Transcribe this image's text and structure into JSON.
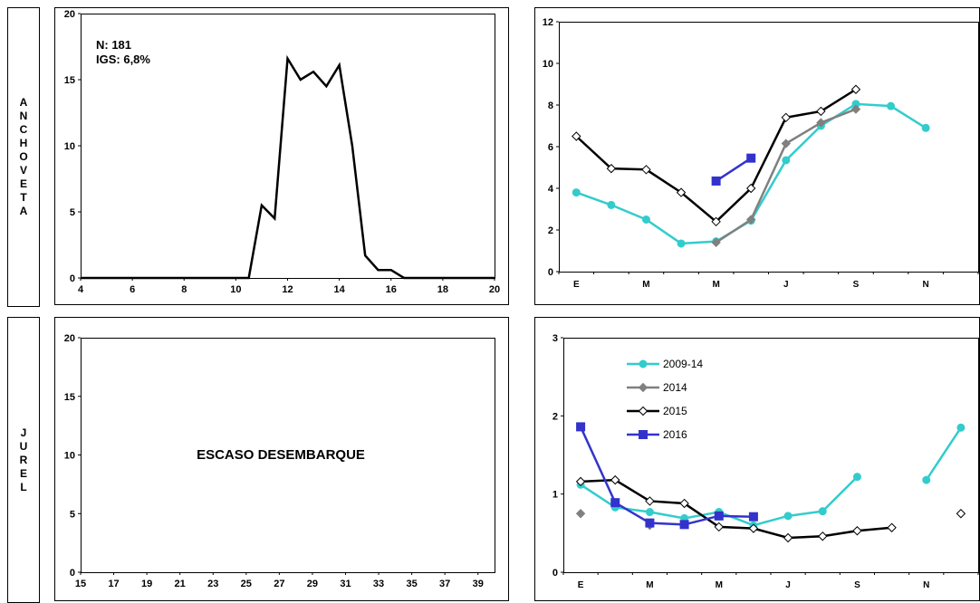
{
  "rows": [
    {
      "label": "ANCHOVETA"
    },
    {
      "label": "JUREL"
    }
  ],
  "chart_data": [
    {
      "type": "line",
      "id": "anch-length",
      "xlim": [
        4,
        20
      ],
      "ylim": [
        0,
        20
      ],
      "xticks": [
        "4",
        "6",
        "8",
        "10",
        "12",
        "14",
        "16",
        "18",
        "20"
      ],
      "yticks": [
        "0",
        "5",
        "10",
        "15",
        "20"
      ],
      "grid": false,
      "annotations": [
        "N: 181",
        "IGS: 6,8%"
      ],
      "series": [
        {
          "color": "#000000",
          "x": [
            4,
            10.5,
            11,
            11.5,
            12,
            12.5,
            13,
            13.5,
            14,
            14.5,
            15,
            15.5,
            16,
            16.5,
            17,
            20
          ],
          "y": [
            0,
            0,
            5.5,
            4.5,
            16.6,
            15,
            15.6,
            14.5,
            16.1,
            10,
            1.7,
            0.6,
            0.6,
            0,
            0,
            0
          ]
        }
      ]
    },
    {
      "type": "line",
      "id": "anch-igs",
      "ylim": [
        0,
        12
      ],
      "yticks": [
        "0",
        "2",
        "4",
        "6",
        "8",
        "10",
        "12"
      ],
      "categories": [
        "E",
        "M",
        "M",
        "J",
        "S",
        "N"
      ],
      "grid": false,
      "series": [
        {
          "name": "2009-14",
          "color": "#33CCCC",
          "marker": "circle",
          "x": [
            1,
            2,
            3,
            4,
            5,
            6,
            7,
            8,
            9,
            10,
            11
          ],
          "y": [
            3.8,
            3.2,
            2.5,
            1.35,
            1.45,
            2.45,
            5.35,
            7.0,
            8.05,
            7.95,
            6.9
          ]
        },
        {
          "name": "2014",
          "color": "#808080",
          "marker": "diamond",
          "x": [
            5,
            6,
            7,
            8,
            9
          ],
          "y": [
            1.4,
            2.5,
            6.15,
            7.15,
            7.8
          ]
        },
        {
          "name": "2015",
          "color": "#000000",
          "marker": "diamond-open",
          "x": [
            1,
            2,
            3,
            4,
            5,
            6,
            7,
            8,
            9
          ],
          "y": [
            6.5,
            4.95,
            4.9,
            3.8,
            2.4,
            4.0,
            7.4,
            7.7,
            8.75
          ]
        },
        {
          "name": "2016",
          "color": "#3333CC",
          "marker": "square",
          "x": [
            5,
            6
          ],
          "y": [
            4.35,
            5.45
          ]
        }
      ]
    },
    {
      "type": "line",
      "id": "jurel-length",
      "xlim": [
        15,
        40
      ],
      "ylim": [
        0,
        20
      ],
      "xticks": [
        "15",
        "17",
        "19",
        "21",
        "23",
        "25",
        "27",
        "29",
        "31",
        "33",
        "35",
        "37",
        "39"
      ],
      "yticks": [
        "0",
        "5",
        "10",
        "15",
        "20"
      ],
      "grid": false,
      "annotations": [
        "ESCASO DESEMBARQUE"
      ],
      "series": []
    },
    {
      "type": "line",
      "id": "jurel-igs",
      "ylim": [
        0,
        3
      ],
      "yticks": [
        "0",
        "1",
        "2",
        "3"
      ],
      "categories": [
        "E",
        "M",
        "M",
        "J",
        "S",
        "N"
      ],
      "grid": false,
      "legend_position": "top-left",
      "legend": [
        "2009-14",
        "2014",
        "2015",
        "2016"
      ],
      "series": [
        {
          "name": "2009-14",
          "color": "#33CCCC",
          "marker": "circle",
          "segments": [
            {
              "x": [
                1,
                2,
                3,
                4,
                5,
                6,
                7,
                8,
                9
              ],
              "y": [
                1.12,
                0.83,
                0.77,
                0.69,
                0.77,
                0.6,
                0.72,
                0.78,
                1.22
              ]
            },
            {
              "x": [
                11,
                12
              ],
              "y": [
                1.18,
                1.85
              ]
            }
          ]
        },
        {
          "name": "2014",
          "color": "#808080",
          "marker": "diamond",
          "segments": [
            {
              "x": [
                1
              ],
              "y": [
                0.75
              ]
            },
            {
              "x": [
                3
              ],
              "y": [
                0.6
              ]
            }
          ]
        },
        {
          "name": "2015",
          "color": "#000000",
          "marker": "diamond-open",
          "segments": [
            {
              "x": [
                1,
                2,
                3,
                4,
                5,
                6,
                7,
                8,
                9,
                10
              ],
              "y": [
                1.16,
                1.18,
                0.91,
                0.88,
                0.58,
                0.56,
                0.44,
                0.46,
                0.53,
                0.57
              ]
            },
            {
              "x": [
                12
              ],
              "y": [
                0.75
              ]
            }
          ]
        },
        {
          "name": "2016",
          "color": "#3333CC",
          "marker": "square",
          "segments": [
            {
              "x": [
                1,
                2,
                3,
                4,
                5,
                6
              ],
              "y": [
                1.86,
                0.89,
                0.63,
                0.61,
                0.72,
                0.71
              ]
            }
          ]
        }
      ]
    }
  ]
}
